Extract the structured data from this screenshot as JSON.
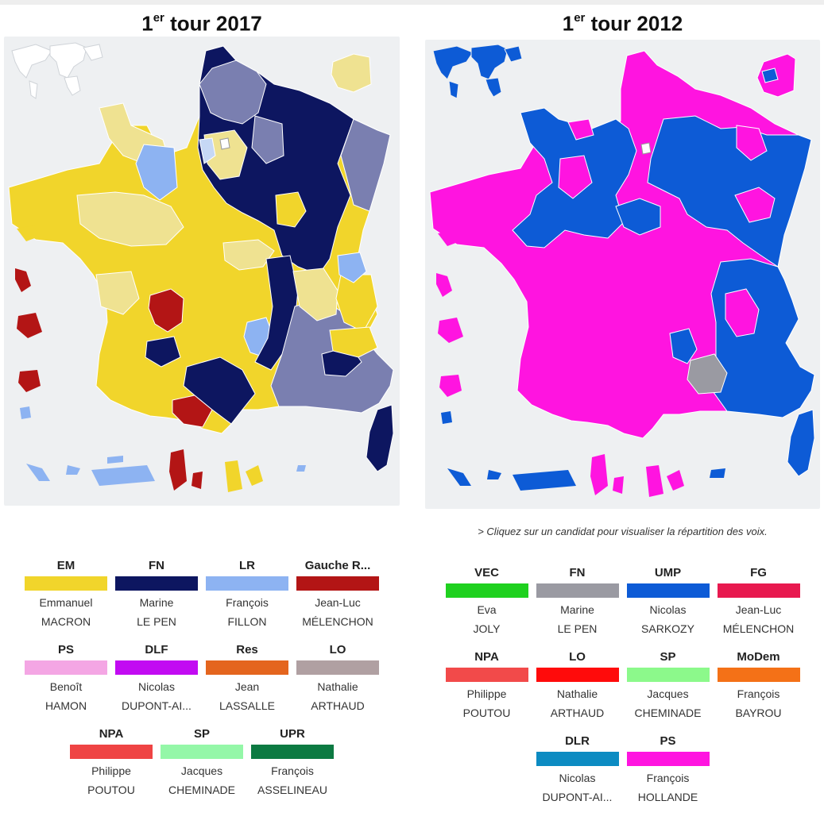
{
  "left": {
    "title_prefix": "1",
    "title_sup": "er",
    "title_suffix": " tour 2017",
    "candidates": [
      {
        "party": "EM",
        "first": "Emmanuel",
        "last": "MACRON",
        "color": "#f1d52b"
      },
      {
        "party": "FN",
        "first": "Marine",
        "last": "LE PEN",
        "color": "#0d1660"
      },
      {
        "party": "LR",
        "first": "François",
        "last": "FILLON",
        "color": "#8db3f2"
      },
      {
        "party": "Gauche R...",
        "first": "Jean-Luc",
        "last": "MÉLENCHON",
        "color": "#b31515"
      },
      {
        "party": "PS",
        "first": "Benoît",
        "last": "HAMON",
        "color": "#f4a6e4"
      },
      {
        "party": "DLF",
        "first": "Nicolas",
        "last": "DUPONT-AI...",
        "color": "#c20bf2"
      },
      {
        "party": "Res",
        "first": "Jean",
        "last": "LASSALLE",
        "color": "#e4651e"
      },
      {
        "party": "LO",
        "first": "Nathalie",
        "last": "ARTHAUD",
        "color": "#b0a0a2"
      },
      {
        "party": "NPA",
        "first": "Philippe",
        "last": "POUTOU",
        "color": "#ef4444"
      },
      {
        "party": "SP",
        "first": "Jacques",
        "last": "CHEMINADE",
        "color": "#94f7a8"
      },
      {
        "party": "UPR",
        "first": "François",
        "last": "ASSELINEAU",
        "color": "#0c7a42"
      }
    ],
    "map_palette": {
      "macron": "#f1d52b",
      "macron_light": "#efe291",
      "lepen": "#0d1660",
      "lepen_light": "#7a7fb0",
      "fillon": "#8db3f2",
      "fillon_light": "#c6d8f5",
      "melenchon": "#b31515"
    }
  },
  "right": {
    "title_prefix": "1",
    "title_sup": "er",
    "title_suffix": " tour 2012",
    "hint": "> Cliquez sur un candidat pour visualiser la répartition des voix.",
    "candidates": [
      {
        "party": "VEC",
        "first": "Eva",
        "last": "JOLY",
        "color": "#1fd11f"
      },
      {
        "party": "FN",
        "first": "Marine",
        "last": "LE PEN",
        "color": "#9a9aa2"
      },
      {
        "party": "UMP",
        "first": "Nicolas",
        "last": "SARKOZY",
        "color": "#0d5bd6"
      },
      {
        "party": "FG",
        "first": "Jean-Luc",
        "last": "MÉLENCHON",
        "color": "#e8194f"
      },
      {
        "party": "NPA",
        "first": "Philippe",
        "last": "POUTOU",
        "color": "#f24a4a"
      },
      {
        "party": "LO",
        "first": "Nathalie",
        "last": "ARTHAUD",
        "color": "#ff0b0b"
      },
      {
        "party": "SP",
        "first": "Jacques",
        "last": "CHEMINADE",
        "color": "#8cf98b"
      },
      {
        "party": "MoDem",
        "first": "François",
        "last": "BAYROU",
        "color": "#f47117"
      },
      {
        "party": "DLR",
        "first": "Nicolas",
        "last": "DUPONT-AI...",
        "color": "#0c8bc2"
      },
      {
        "party": "PS",
        "first": "François",
        "last": "HOLLANDE",
        "color": "#ff14e0"
      }
    ],
    "map_palette": {
      "hollande": "#ff14e0",
      "sarkozy": "#0d5bd6",
      "lepen": "#9a9aa2"
    }
  }
}
